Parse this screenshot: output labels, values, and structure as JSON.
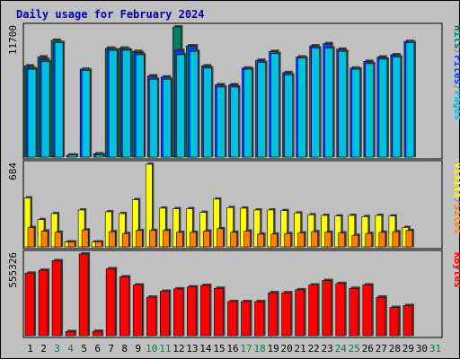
{
  "chart_data": {
    "type": "bar",
    "title": "Daily usage for February 2024",
    "categories": [
      "1",
      "2",
      "3",
      "4",
      "5",
      "6",
      "7",
      "8",
      "9",
      "10",
      "11",
      "12",
      "13",
      "14",
      "15",
      "16",
      "17",
      "18",
      "19",
      "20",
      "21",
      "22",
      "23",
      "24",
      "25",
      "26",
      "27",
      "28",
      "29",
      "30",
      "31"
    ],
    "weekend_days": [
      "3",
      "4",
      "10",
      "11",
      "17",
      "18",
      "24",
      "25",
      "31"
    ],
    "panels": [
      {
        "id": "hits-files-pages",
        "max_label": "11700",
        "ymax": 11700,
        "legend": [
          {
            "text": "Pages",
            "color": "#00c0e0"
          },
          {
            "text": "Files",
            "color": "#0040ff"
          },
          {
            "text": "Hits",
            "color": "#008060"
          }
        ],
        "series": [
          {
            "name": "Hits",
            "color": "#008060",
            "values": [
              8200,
              9000,
              10500,
              0,
              0,
              0,
              9800,
              9800,
              9500,
              0,
              0,
              11700,
              10000,
              0,
              0,
              0,
              0,
              0,
              0,
              0,
              0,
              0,
              0,
              0,
              0,
              0,
              0,
              0,
              0,
              0,
              0
            ]
          },
          {
            "name": "Files",
            "color": "#0040ff",
            "values": [
              8000,
              8800,
              10300,
              180,
              7900,
              300,
              9700,
              9700,
              9400,
              7300,
              7200,
              9600,
              10000,
              8200,
              6500,
              6500,
              8000,
              8700,
              9500,
              7600,
              9000,
              10000,
              10200,
              9700,
              8000,
              8600,
              9000,
              9200,
              10400,
              0,
              0
            ]
          },
          {
            "name": "Pages",
            "color": "#00c0e0",
            "values": [
              7900,
              8600,
              10300,
              180,
              7800,
              200,
              9600,
              9600,
              9200,
              7000,
              7000,
              9200,
              9500,
              8000,
              6300,
              6300,
              7900,
              8500,
              9300,
              7400,
              8900,
              9800,
              9800,
              9500,
              7900,
              8400,
              8800,
              9000,
              10300,
              0,
              0
            ]
          }
        ]
      },
      {
        "id": "visits-sites",
        "max_label": "684",
        "ymax": 684,
        "legend": [
          {
            "text": "Sites",
            "color": "#ff8000"
          },
          {
            "text": "/",
            "color": "#808080"
          },
          {
            "text": "Visits",
            "color": "#ffff00"
          }
        ],
        "series": [
          {
            "name": "Visits",
            "color": "#ffff00",
            "values": [
              405,
              225,
              275,
              40,
              305,
              40,
              290,
              275,
              390,
              684,
              320,
              315,
              315,
              285,
              395,
              325,
              320,
              305,
              305,
              300,
              280,
              265,
              260,
              255,
              260,
              250,
              260,
              255,
              160,
              0,
              0
            ]
          },
          {
            "name": "Sites",
            "color": "#ff8000",
            "values": [
              160,
              130,
              120,
              40,
              140,
              40,
              125,
              110,
              135,
              135,
              135,
              120,
              120,
              130,
              150,
              120,
              130,
              105,
              105,
              110,
              115,
              125,
              120,
              115,
              95,
              110,
              120,
              125,
              135,
              0,
              0
            ]
          }
        ]
      },
      {
        "id": "kbytes",
        "max_label": "555326",
        "ymax": 555326,
        "legend": [
          {
            "text": "KBytes",
            "color": "#ff0000"
          }
        ],
        "series": [
          {
            "name": "KBytes",
            "color": "#ff0000",
            "values": [
              425000,
              445000,
              510000,
              28000,
              555326,
              30000,
              455000,
              400000,
              345000,
              262000,
              302000,
              318000,
              332000,
              342000,
              322000,
              232000,
              232000,
              232000,
              292000,
              292000,
              312000,
              345000,
              375000,
              355000,
              322000,
              345000,
              262000,
              192000,
              205000,
              0,
              0
            ]
          }
        ]
      }
    ]
  }
}
